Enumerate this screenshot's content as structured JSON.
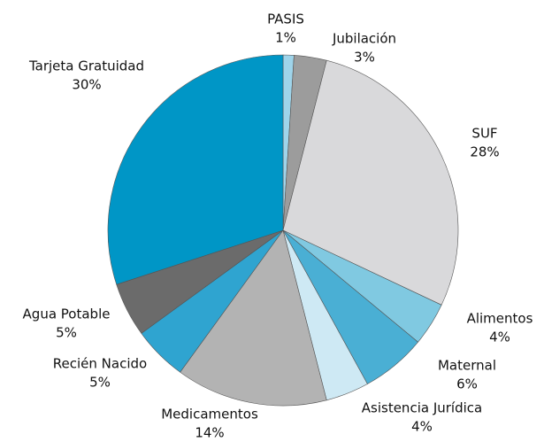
{
  "chart_data": {
    "type": "pie",
    "categories": [
      "PASIS",
      "Jubilación",
      "SUF",
      "Alimentos",
      "Maternal",
      "Asistencia Jurídica",
      "Medicamentos",
      "Recién Nacido",
      "Agua Potable",
      "Tarjeta Gratuidad"
    ],
    "values": [
      1,
      3,
      28,
      4,
      6,
      4,
      14,
      5,
      5,
      30
    ],
    "value_labels": [
      "1%",
      "3%",
      "28%",
      "4%",
      "6%",
      "4%",
      "14%",
      "5%",
      "5%",
      "30%"
    ],
    "colors": [
      "#9fd4ea",
      "#9c9c9c",
      "#d9d9db",
      "#80c9e1",
      "#4aafd4",
      "#cee9f4",
      "#b3b3b3",
      "#2fa4d0",
      "#6b6b6b",
      "#0096c6"
    ]
  }
}
